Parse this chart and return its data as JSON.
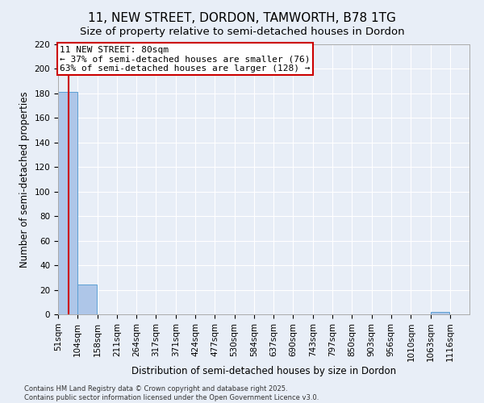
{
  "title_line1": "11, NEW STREET, DORDON, TAMWORTH, B78 1TG",
  "title_line2": "Size of property relative to semi-detached houses in Dordon",
  "xlabel": "Distribution of semi-detached houses by size in Dordon",
  "ylabel": "Number of semi-detached properties",
  "footnote": "Contains HM Land Registry data © Crown copyright and database right 2025.\nContains public sector information licensed under the Open Government Licence v3.0.",
  "bin_edges": [
    51,
    104,
    158,
    211,
    264,
    317,
    371,
    424,
    477,
    530,
    584,
    637,
    690,
    743,
    797,
    850,
    903,
    956,
    1010,
    1063,
    1116
  ],
  "bin_labels": [
    "51sqm",
    "104sqm",
    "158sqm",
    "211sqm",
    "264sqm",
    "317sqm",
    "371sqm",
    "424sqm",
    "477sqm",
    "530sqm",
    "584sqm",
    "637sqm",
    "690sqm",
    "743sqm",
    "797sqm",
    "850sqm",
    "903sqm",
    "956sqm",
    "1010sqm",
    "1063sqm",
    "1116sqm"
  ],
  "counts": [
    181,
    24,
    0,
    0,
    0,
    0,
    0,
    0,
    0,
    0,
    0,
    0,
    0,
    0,
    0,
    0,
    0,
    0,
    0,
    2,
    0
  ],
  "bar_color": "#aec6e8",
  "bar_edge_color": "#5a9fd4",
  "property_size": 80,
  "property_label": "11 NEW STREET: 80sqm",
  "pct_smaller": 37,
  "n_smaller": 76,
  "pct_larger": 63,
  "n_larger": 128,
  "vline_color": "#cc0000",
  "annotation_box_color": "#cc0000",
  "ylim_max": 220,
  "yticks": [
    0,
    20,
    40,
    60,
    80,
    100,
    120,
    140,
    160,
    180,
    200,
    220
  ],
  "background_color": "#e8eef7",
  "grid_color": "#ffffff",
  "title_fontsize": 11,
  "subtitle_fontsize": 9.5,
  "axis_label_fontsize": 8.5,
  "tick_fontsize": 7.5,
  "annotation_fontsize": 8
}
